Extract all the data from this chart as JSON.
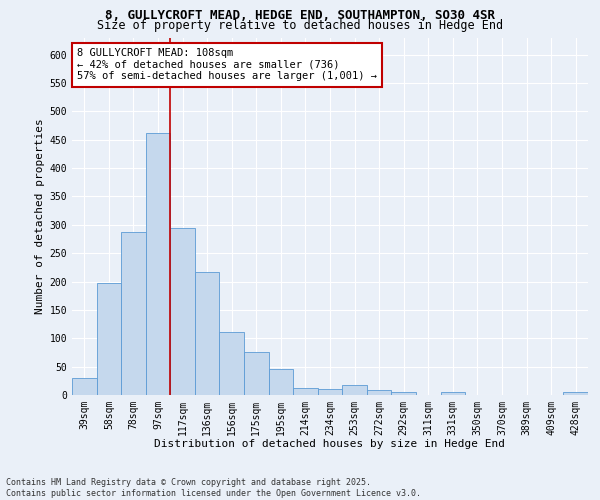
{
  "title_line1": "8, GULLYCROFT MEAD, HEDGE END, SOUTHAMPTON, SO30 4SR",
  "title_line2": "Size of property relative to detached houses in Hedge End",
  "xlabel": "Distribution of detached houses by size in Hedge End",
  "ylabel": "Number of detached properties",
  "categories": [
    "39sqm",
    "58sqm",
    "78sqm",
    "97sqm",
    "117sqm",
    "136sqm",
    "156sqm",
    "175sqm",
    "195sqm",
    "214sqm",
    "234sqm",
    "253sqm",
    "272sqm",
    "292sqm",
    "311sqm",
    "331sqm",
    "350sqm",
    "370sqm",
    "389sqm",
    "409sqm",
    "428sqm"
  ],
  "values": [
    30,
    197,
    288,
    462,
    295,
    216,
    111,
    75,
    46,
    12,
    10,
    18,
    9,
    5,
    0,
    5,
    0,
    0,
    0,
    0,
    5
  ],
  "bar_color": "#c5d8ed",
  "bar_edge_color": "#5b9bd5",
  "background_color": "#eaf0f8",
  "grid_color": "#ffffff",
  "ref_line_color": "#c00000",
  "annotation_text": "8 GULLYCROFT MEAD: 108sqm\n← 42% of detached houses are smaller (736)\n57% of semi-detached houses are larger (1,001) →",
  "annotation_box_color": "#ffffff",
  "annotation_box_edge_color": "#c00000",
  "ylim": [
    0,
    630
  ],
  "yticks": [
    0,
    50,
    100,
    150,
    200,
    250,
    300,
    350,
    400,
    450,
    500,
    550,
    600
  ],
  "footer_text": "Contains HM Land Registry data © Crown copyright and database right 2025.\nContains public sector information licensed under the Open Government Licence v3.0.",
  "title_fontsize": 9,
  "subtitle_fontsize": 8.5,
  "axis_label_fontsize": 8,
  "tick_fontsize": 7,
  "annotation_fontsize": 7.5,
  "footer_fontsize": 6
}
